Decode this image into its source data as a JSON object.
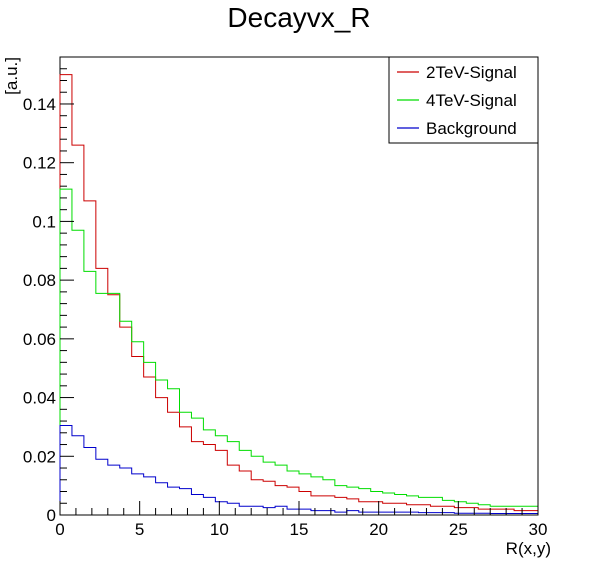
{
  "chart_data": {
    "type": "line",
    "title": "Decayvx_R",
    "xlabel": "R(x,y)",
    "ylabel": "[a.u.]",
    "xlim": [
      0,
      30
    ],
    "ylim": [
      0,
      0.156
    ],
    "bin_width": 0.75,
    "x_ticks": [
      "0",
      "5",
      "10",
      "15",
      "20",
      "25",
      "30"
    ],
    "y_ticks": [
      "0",
      "0.02",
      "0.04",
      "0.06",
      "0.08",
      "0.1",
      "0.12",
      "0.14"
    ],
    "grid": false,
    "legend_position": "top-right",
    "series": [
      {
        "name": "2TeV-Signal",
        "color": "#cc0000",
        "values": [
          0.15,
          0.126,
          0.107,
          0.084,
          0.075,
          0.064,
          0.054,
          0.047,
          0.04,
          0.035,
          0.03,
          0.025,
          0.024,
          0.022,
          0.017,
          0.015,
          0.012,
          0.0115,
          0.01,
          0.0095,
          0.008,
          0.0065,
          0.0065,
          0.006,
          0.0055,
          0.0045,
          0.0045,
          0.004,
          0.004,
          0.0035,
          0.0035,
          0.003,
          0.003,
          0.0025,
          0.0025,
          0.002,
          0.002,
          0.002,
          0.0015,
          0.0015
        ]
      },
      {
        "name": "4TeV-Signal",
        "color": "#00dd00",
        "values": [
          0.111,
          0.097,
          0.083,
          0.0755,
          0.0755,
          0.066,
          0.059,
          0.052,
          0.046,
          0.043,
          0.035,
          0.033,
          0.029,
          0.027,
          0.025,
          0.022,
          0.02,
          0.018,
          0.017,
          0.015,
          0.014,
          0.013,
          0.012,
          0.01,
          0.0095,
          0.009,
          0.008,
          0.0075,
          0.007,
          0.0065,
          0.006,
          0.006,
          0.005,
          0.0045,
          0.004,
          0.0035,
          0.003,
          0.003,
          0.003,
          0.003
        ]
      },
      {
        "name": "Background",
        "color": "#0000cc",
        "values": [
          0.0305,
          0.027,
          0.023,
          0.019,
          0.017,
          0.016,
          0.014,
          0.013,
          0.011,
          0.0095,
          0.009,
          0.007,
          0.006,
          0.0045,
          0.004,
          0.003,
          0.003,
          0.0025,
          0.003,
          0.002,
          0.002,
          0.0015,
          0.0015,
          0.001,
          0.0015,
          0.001,
          0.001,
          0.001,
          0.001,
          0.001,
          0.0008,
          0.0008,
          0.0008,
          0.0006,
          0.0006,
          0.0006,
          0.0005,
          0.0005,
          0.0005,
          0.0005
        ]
      }
    ]
  }
}
